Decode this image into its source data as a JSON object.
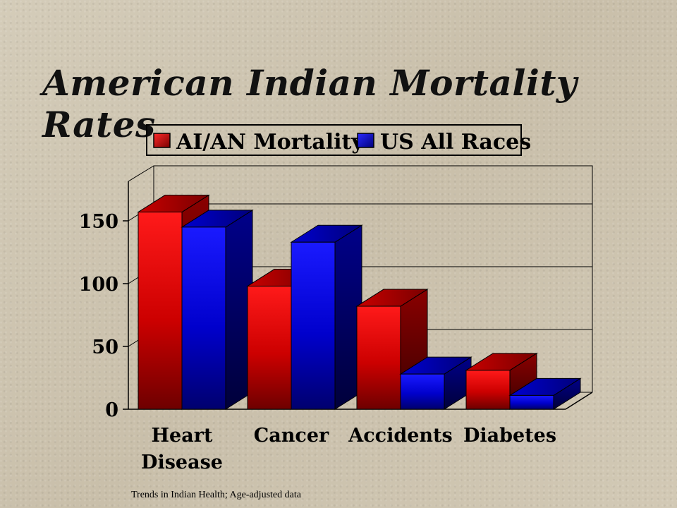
{
  "slide": {
    "title": "American Indian Mortality Rates",
    "source_note": "Trends in Indian Health; Age-adjusted data"
  },
  "colors": {
    "series_red": "#e00000",
    "series_blue": "#0000e6",
    "axis": "#000000",
    "gridline": "#000000"
  },
  "chart_data": {
    "type": "bar",
    "title": "",
    "xlabel": "",
    "ylabel": "",
    "categories": [
      "Heart Disease",
      "Cancer",
      "Accidents",
      "Diabetes"
    ],
    "category_lines": [
      [
        "Heart",
        "Disease"
      ],
      [
        "Cancer"
      ],
      [
        "Accidents"
      ],
      [
        "Diabetes"
      ]
    ],
    "series": [
      {
        "name": "AI/AN Mortality",
        "color": "red",
        "values": [
          157,
          98,
          82,
          31
        ]
      },
      {
        "name": "US All Races",
        "color": "blue",
        "values": [
          145,
          133,
          28,
          11
        ]
      }
    ],
    "ylim": [
      0,
      180
    ],
    "yticks": [
      0,
      50,
      100,
      150
    ],
    "grid": true,
    "legend": "top",
    "style": "3d-clustered"
  }
}
